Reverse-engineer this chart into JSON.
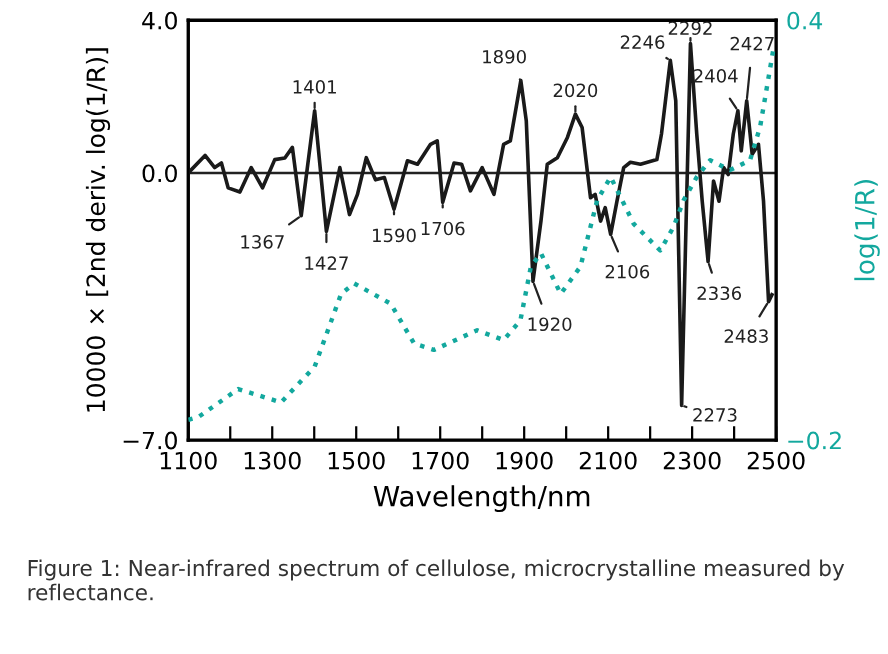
{
  "chart_data": {
    "type": "line",
    "xlabel": "Wavelength/nm",
    "ylabel": "10000 × [2nd deriv. log(1/R)]",
    "y2label": "log(1/R)",
    "xlim": [
      1100,
      2500
    ],
    "xticks": [
      1100,
      {
        "value": 1200,
        "label": null
      },
      1300,
      {
        "value": 1400,
        "label": null
      },
      1500,
      {
        "value": 1600,
        "label": null
      },
      1700,
      {
        "value": 1800,
        "label": null
      },
      1900,
      {
        "value": 2000,
        "label": null
      },
      2100,
      {
        "value": 2200,
        "label": null
      },
      2300,
      {
        "value": 2400,
        "label": null
      },
      2500
    ],
    "ylim": [
      -7.0,
      4.0
    ],
    "yticks": [
      {
        "value": -7.0,
        "label": "−7.0"
      },
      {
        "value": 0.0,
        "label": "0.0"
      },
      {
        "value": 4.0,
        "label": "4.0"
      }
    ],
    "y2lim": [
      -0.2,
      0.4
    ],
    "y2ticks": [
      {
        "value": -0.2,
        "label": "−0.2"
      },
      {
        "value": 0.4,
        "label": "0.4"
      }
    ],
    "grid": false,
    "legend": false,
    "ref_lines": [
      {
        "axis": "y",
        "value": 0.0,
        "color": "#222222"
      }
    ],
    "series": [
      {
        "color": "#1a1a1a",
        "line_style": "solid",
        "x": [
          1100,
          1140,
          1163,
          1179,
          1195,
          1223,
          1250,
          1277,
          1306,
          1330,
          1348,
          1369,
          1401,
          1429,
          1461,
          1484,
          1503,
          1524,
          1546,
          1567,
          1590,
          1622,
          1646,
          1677,
          1693,
          1706,
          1733,
          1751,
          1772,
          1800,
          1828,
          1851,
          1867,
          1892,
          1905,
          1921,
          1940,
          1955,
          1979,
          2003,
          2022,
          2038,
          2058,
          2069,
          2082,
          2093,
          2106,
          2121,
          2137,
          2153,
          2177,
          2216,
          2227,
          2248,
          2261,
          2275,
          2296,
          2311,
          2324,
          2338,
          2351,
          2364,
          2375,
          2386,
          2398,
          2409,
          2417,
          2430,
          2443,
          2458,
          2470,
          2482,
          2490
        ],
        "values": [
          0.0,
          0.46,
          0.14,
          0.26,
          -0.39,
          -0.5,
          0.14,
          -0.39,
          0.35,
          0.39,
          0.67,
          -1.12,
          1.63,
          -1.53,
          0.14,
          -1.09,
          -0.56,
          0.4,
          -0.18,
          -0.12,
          -0.95,
          0.32,
          0.23,
          0.75,
          0.84,
          -0.77,
          0.26,
          0.23,
          -0.47,
          0.14,
          -0.56,
          0.75,
          0.84,
          2.42,
          1.37,
          -2.84,
          -1.26,
          0.23,
          0.4,
          0.93,
          1.54,
          1.19,
          -0.65,
          -0.56,
          -1.26,
          -0.91,
          -1.61,
          -0.74,
          0.14,
          0.28,
          0.23,
          0.35,
          1.02,
          2.95,
          1.89,
          -6.09,
          3.39,
          1.02,
          -0.74,
          -2.32,
          -0.21,
          -0.74,
          0.14,
          -0.04,
          1.02,
          1.63,
          0.58,
          1.89,
          0.49,
          0.75,
          -0.74,
          -3.37,
          -3.19
        ]
      },
      {
        "color": "#13a89e",
        "line_style": "dotted",
        "axis": "y2",
        "x": [
          1100,
          1124,
          1219,
          1321,
          1401,
          1464,
          1495,
          1582,
          1638,
          1685,
          1788,
          1851,
          1891,
          1916,
          1940,
          1987,
          2034,
          2074,
          2106,
          2161,
          2224,
          2256,
          2280,
          2311,
          2343,
          2390,
          2438,
          2462,
          2493
        ],
        "values": [
          -0.171,
          -0.167,
          -0.127,
          -0.146,
          -0.095,
          0.009,
          0.024,
          -0.005,
          -0.062,
          -0.071,
          -0.043,
          -0.057,
          -0.029,
          0.048,
          0.067,
          0.009,
          0.048,
          0.143,
          0.176,
          0.109,
          0.071,
          0.105,
          0.143,
          0.176,
          0.2,
          0.186,
          0.2,
          0.248,
          0.357
        ]
      }
    ],
    "annotations": [
      {
        "text": "1367",
        "x": 1369,
        "y": -1.12
      },
      {
        "text": "1401",
        "x": 1401,
        "y": 1.63
      },
      {
        "text": "1427",
        "x": 1429,
        "y": -1.53
      },
      {
        "text": "1590",
        "x": 1590,
        "y": -0.95
      },
      {
        "text": "1706",
        "x": 1706,
        "y": -0.77
      },
      {
        "text": "1890",
        "x": 1892,
        "y": 2.42
      },
      {
        "text": "1920",
        "x": 1921,
        "y": -2.84
      },
      {
        "text": "2020",
        "x": 2022,
        "y": 1.54
      },
      {
        "text": "2106",
        "x": 2106,
        "y": -1.61
      },
      {
        "text": "2246",
        "x": 2248,
        "y": 2.95
      },
      {
        "text": "2273",
        "x": 2275,
        "y": -6.09
      },
      {
        "text": "2292",
        "x": 2296,
        "y": 3.39
      },
      {
        "text": "2336",
        "x": 2338,
        "y": -2.32
      },
      {
        "text": "2404",
        "x": 2409,
        "y": 1.63
      },
      {
        "text": "2427",
        "x": 2430,
        "y": 1.89
      },
      {
        "text": "2483",
        "x": 2482,
        "y": -3.37
      },
      "Figure 1: Near-infrared spectrum of cellulose, microcrystalline measured by reflectance."
    ]
  }
}
